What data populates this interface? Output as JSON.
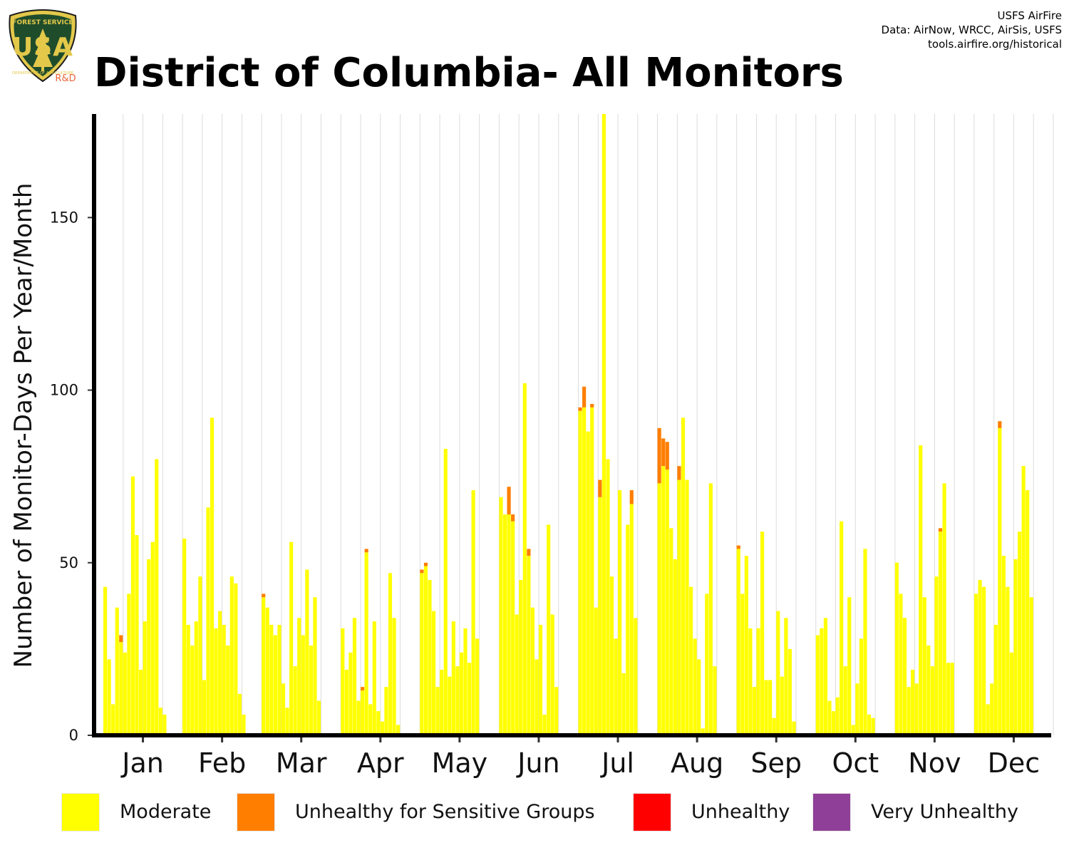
{
  "header": {
    "title": "District of Columbia- All Monitors",
    "credits": [
      "USFS AirFire",
      "Data: AirNow, WRCC, AirSis, USFS",
      "tools.airfire.org/historical"
    ],
    "logo": {
      "icon": "usfs-shield-icon",
      "top_text": "FOREST SERVICE",
      "letters": "USA",
      "bottom_text": "DEPARTMENT OF AGRICULTURE",
      "badge": "R&D"
    }
  },
  "chart_data": {
    "type": "bar",
    "stacked": true,
    "ylabel": "Number of Monitor-Days Per Year/Month",
    "xlabel": "",
    "ylim": [
      0,
      180
    ],
    "yticks": [
      0,
      50,
      100,
      150
    ],
    "grid": "vertical",
    "legend_position": "bottom",
    "categories": [
      "Jan",
      "Feb",
      "Mar",
      "Apr",
      "May",
      "Jun",
      "Jul",
      "Aug",
      "Sep",
      "Oct",
      "Nov",
      "Dec"
    ],
    "bars_per_category": 20,
    "colors": {
      "Moderate": "#ffff00",
      "Unhealthy for Sensitive Groups": "#ff7e00",
      "Unhealthy": "#ff0000",
      "Very Unhealthy": "#8f3f97"
    },
    "series": [
      {
        "name": "Moderate",
        "values": [
          [
            43,
            22,
            9,
            37,
            27,
            24,
            41,
            75,
            58,
            19,
            33,
            51,
            56,
            80,
            8,
            6,
            0,
            0,
            0,
            0
          ],
          [
            57,
            32,
            26,
            33,
            46,
            16,
            66,
            92,
            31,
            36,
            32,
            26,
            46,
            44,
            12,
            6,
            0,
            0,
            0,
            0
          ],
          [
            40,
            37,
            32,
            29,
            32,
            15,
            8,
            56,
            20,
            34,
            29,
            48,
            26,
            40,
            10,
            0,
            0,
            0,
            0,
            0
          ],
          [
            31,
            19,
            24,
            34,
            10,
            13,
            53,
            9,
            33,
            7,
            4,
            14,
            47,
            34,
            3,
            0,
            0,
            0,
            0,
            0
          ],
          [
            47,
            49,
            45,
            36,
            14,
            19,
            83,
            17,
            33,
            20,
            24,
            31,
            21,
            71,
            28,
            0,
            0,
            0,
            0,
            0
          ],
          [
            69,
            64,
            64,
            62,
            35,
            45,
            102,
            52,
            37,
            22,
            32,
            6,
            61,
            35,
            14,
            0,
            0,
            0,
            0,
            0
          ],
          [
            94,
            95,
            88,
            95,
            37,
            69,
            180,
            80,
            46,
            28,
            71,
            18,
            61,
            67,
            34,
            0,
            0,
            0,
            0,
            0
          ],
          [
            73,
            78,
            77,
            60,
            51,
            74,
            92,
            74,
            43,
            28,
            22,
            2,
            41,
            73,
            20,
            0,
            0,
            0,
            0,
            0
          ],
          [
            54,
            41,
            52,
            31,
            14,
            31,
            59,
            16,
            16,
            5,
            36,
            17,
            34,
            25,
            4,
            0,
            0,
            0,
            0,
            0
          ],
          [
            29,
            31,
            34,
            10,
            7,
            11,
            62,
            20,
            40,
            3,
            15,
            28,
            54,
            6,
            5,
            0,
            0,
            0,
            0,
            0
          ],
          [
            50,
            41,
            34,
            14,
            19,
            15,
            84,
            40,
            26,
            20,
            46,
            59,
            73,
            21,
            21,
            0,
            0,
            0,
            0,
            0
          ],
          [
            41,
            45,
            43,
            9,
            15,
            32,
            89,
            52,
            43,
            24,
            51,
            59,
            78,
            71,
            40,
            0,
            0,
            0,
            0,
            0
          ]
        ]
      },
      {
        "name": "Unhealthy for Sensitive Groups",
        "values": [
          [
            0,
            0,
            0,
            0,
            2,
            0,
            0,
            0,
            0,
            0,
            0,
            0,
            0,
            0,
            0,
            0,
            0,
            0,
            0,
            0
          ],
          [
            0,
            0,
            0,
            0,
            0,
            0,
            0,
            0,
            0,
            0,
            0,
            0,
            0,
            0,
            0,
            0,
            0,
            0,
            0,
            0
          ],
          [
            1,
            0,
            0,
            0,
            0,
            0,
            0,
            0,
            0,
            0,
            0,
            0,
            0,
            0,
            0,
            0,
            0,
            0,
            0,
            0
          ],
          [
            0,
            0,
            0,
            0,
            0,
            1,
            1,
            0,
            0,
            0,
            0,
            0,
            0,
            0,
            0,
            0,
            0,
            0,
            0,
            0
          ],
          [
            1,
            1,
            0,
            0,
            0,
            0,
            0,
            0,
            0,
            0,
            0,
            0,
            0,
            0,
            0,
            0,
            0,
            0,
            0,
            0
          ],
          [
            0,
            0,
            8,
            2,
            0,
            0,
            0,
            2,
            0,
            0,
            0,
            0,
            0,
            0,
            0,
            0,
            0,
            0,
            0,
            0
          ],
          [
            1,
            6,
            0,
            1,
            0,
            5,
            0,
            0,
            0,
            0,
            0,
            0,
            0,
            4,
            0,
            0,
            0,
            0,
            0,
            0
          ],
          [
            16,
            8,
            8,
            0,
            0,
            4,
            0,
            0,
            0,
            0,
            0,
            0,
            0,
            0,
            0,
            0,
            0,
            0,
            0,
            0
          ],
          [
            1,
            0,
            0,
            0,
            0,
            0,
            0,
            0,
            0,
            0,
            0,
            0,
            0,
            0,
            0,
            0,
            0,
            0,
            0,
            0
          ],
          [
            0,
            0,
            0,
            0,
            0,
            0,
            0,
            0,
            0,
            0,
            0,
            0,
            0,
            0,
            0,
            0,
            0,
            0,
            0,
            0
          ],
          [
            0,
            0,
            0,
            0,
            0,
            0,
            0,
            0,
            0,
            0,
            0,
            1,
            0,
            0,
            0,
            0,
            0,
            0,
            0,
            0
          ],
          [
            0,
            0,
            0,
            0,
            0,
            0,
            2,
            0,
            0,
            0,
            0,
            0,
            0,
            0,
            0,
            0,
            0,
            0,
            0,
            0
          ]
        ]
      },
      {
        "name": "Unhealthy",
        "values": [
          [
            0,
            0,
            0,
            0,
            0,
            0,
            0,
            0,
            0,
            0,
            0,
            0,
            0,
            0,
            0,
            0,
            0,
            0,
            0,
            0
          ],
          [
            0,
            0,
            0,
            0,
            0,
            0,
            0,
            0,
            0,
            0,
            0,
            0,
            0,
            0,
            0,
            0,
            0,
            0,
            0,
            0
          ],
          [
            0,
            0,
            0,
            0,
            0,
            0,
            0,
            0,
            0,
            0,
            0,
            0,
            0,
            0,
            0,
            0,
            0,
            0,
            0,
            0
          ],
          [
            0,
            0,
            0,
            0,
            0,
            0,
            0,
            0,
            0,
            0,
            0,
            0,
            0,
            0,
            0,
            0,
            0,
            0,
            0,
            0
          ],
          [
            0,
            0,
            0,
            0,
            0,
            0,
            0,
            0,
            0,
            0,
            0,
            0,
            0,
            0,
            0,
            0,
            0,
            0,
            0,
            0
          ],
          [
            0,
            0,
            0,
            0,
            0,
            0,
            0,
            0,
            0,
            0,
            0,
            0,
            0,
            0,
            0,
            0,
            0,
            0,
            0,
            0
          ],
          [
            0,
            0,
            0,
            0,
            0,
            0,
            0,
            0,
            0,
            0,
            0,
            0,
            0,
            0,
            0,
            0,
            0,
            0,
            0,
            0
          ],
          [
            0,
            0,
            0,
            0,
            0,
            0,
            0,
            0,
            0,
            0,
            0,
            0,
            0,
            0,
            0,
            0,
            0,
            0,
            0,
            0
          ],
          [
            0,
            0,
            0,
            0,
            0,
            0,
            0,
            0,
            0,
            0,
            0,
            0,
            0,
            0,
            0,
            0,
            0,
            0,
            0,
            0
          ],
          [
            0,
            0,
            0,
            0,
            0,
            0,
            0,
            0,
            0,
            0,
            0,
            0,
            0,
            0,
            0,
            0,
            0,
            0,
            0,
            0
          ],
          [
            0,
            0,
            0,
            0,
            0,
            0,
            0,
            0,
            0,
            0,
            0,
            0,
            0,
            0,
            0,
            0,
            0,
            0,
            0,
            0
          ],
          [
            0,
            0,
            0,
            0,
            0,
            0,
            0,
            0,
            0,
            0,
            0,
            0,
            0,
            0,
            0,
            0,
            0,
            0,
            0,
            0
          ]
        ]
      },
      {
        "name": "Very Unhealthy",
        "values": [
          [
            0,
            0,
            0,
            0,
            0,
            0,
            0,
            0,
            0,
            0,
            0,
            0,
            0,
            0,
            0,
            0,
            0,
            0,
            0,
            0
          ],
          [
            0,
            0,
            0,
            0,
            0,
            0,
            0,
            0,
            0,
            0,
            0,
            0,
            0,
            0,
            0,
            0,
            0,
            0,
            0,
            0
          ],
          [
            0,
            0,
            0,
            0,
            0,
            0,
            0,
            0,
            0,
            0,
            0,
            0,
            0,
            0,
            0,
            0,
            0,
            0,
            0,
            0
          ],
          [
            0,
            0,
            0,
            0,
            0,
            0,
            0,
            0,
            0,
            0,
            0,
            0,
            0,
            0,
            0,
            0,
            0,
            0,
            0,
            0
          ],
          [
            0,
            0,
            0,
            0,
            0,
            0,
            0,
            0,
            0,
            0,
            0,
            0,
            0,
            0,
            0,
            0,
            0,
            0,
            0,
            0
          ],
          [
            0,
            0,
            0,
            0,
            0,
            0,
            0,
            0,
            0,
            0,
            0,
            0,
            0,
            0,
            0,
            0,
            0,
            0,
            0,
            0
          ],
          [
            0,
            0,
            0,
            0,
            0,
            0,
            0,
            0,
            0,
            0,
            0,
            0,
            0,
            0,
            0,
            0,
            0,
            0,
            0,
            0
          ],
          [
            0,
            0,
            0,
            0,
            0,
            0,
            0,
            0,
            0,
            0,
            0,
            0,
            0,
            0,
            0,
            0,
            0,
            0,
            0,
            0
          ],
          [
            0,
            0,
            0,
            0,
            0,
            0,
            0,
            0,
            0,
            0,
            0,
            0,
            0,
            0,
            0,
            0,
            0,
            0,
            0,
            0
          ],
          [
            0,
            0,
            0,
            0,
            0,
            0,
            0,
            0,
            0,
            0,
            0,
            0,
            0,
            0,
            0,
            0,
            0,
            0,
            0,
            0
          ],
          [
            0,
            0,
            0,
            0,
            0,
            0,
            0,
            0,
            0,
            0,
            0,
            0,
            0,
            0,
            0,
            0,
            0,
            0,
            0,
            0
          ],
          [
            0,
            0,
            0,
            0,
            0,
            0,
            0,
            0,
            0,
            0,
            0,
            0,
            0,
            0,
            0,
            0,
            0,
            0,
            0,
            0
          ]
        ]
      }
    ]
  }
}
